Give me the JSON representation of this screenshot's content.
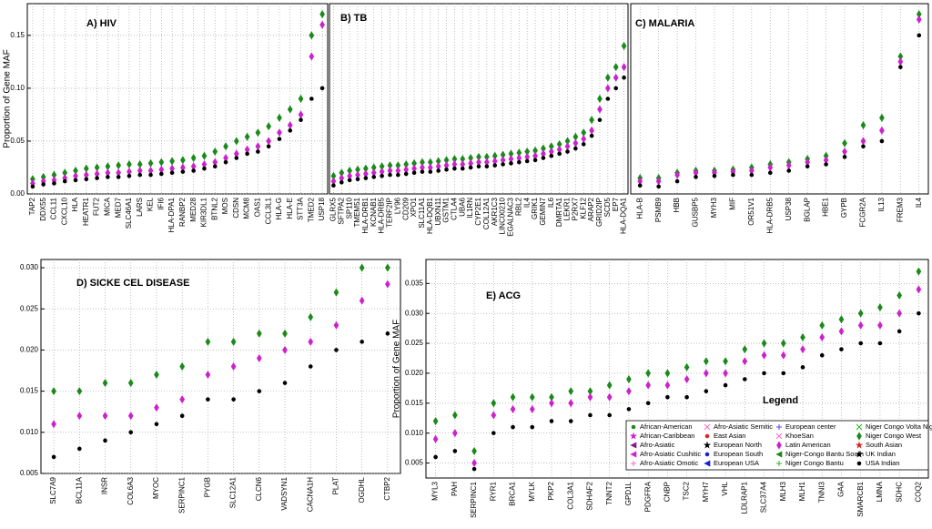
{
  "chart_data": [
    {
      "type": "scatter",
      "title": "A)  HIV",
      "ylabel": "Proportion of Gene MAF",
      "categories": [
        "TAP2",
        "DDX55",
        "CCL11",
        "CXCL10",
        "HLA",
        "HEATR1",
        "FUT2",
        "MICA",
        "MED7",
        "SLC46A1",
        "LARS",
        "KEL",
        "IFI6",
        "HLA-DPA1",
        "RANBP2",
        "MED28",
        "KIR3DL1",
        "BTNL2",
        "MOS",
        "CDSN",
        "MCM8",
        "OAS1",
        "CCL3L1",
        "HLA-G",
        "HLA-E",
        "STT3A",
        "TMED2",
        "USP18"
      ],
      "ylim": [
        0,
        0.18
      ],
      "yticks": [
        {
          "value": 0,
          "label": "0.00"
        },
        {
          "value": 0.05,
          "label": "0.05"
        },
        {
          "value": 0.1,
          "label": "0.10"
        },
        {
          "value": 0.15,
          "label": "0.15"
        }
      ],
      "grid": true,
      "series": [
        {
          "name": "Niger Congo West",
          "color": "#1a8a1a",
          "marker": "diamond",
          "values": [
            0.014,
            0.016,
            0.018,
            0.02,
            0.022,
            0.024,
            0.025,
            0.026,
            0.027,
            0.028,
            0.028,
            0.029,
            0.03,
            0.031,
            0.032,
            0.034,
            0.036,
            0.04,
            0.045,
            0.05,
            0.054,
            0.058,
            0.064,
            0.072,
            0.08,
            0.09,
            0.15,
            0.17
          ]
        },
        {
          "name": "Latin American",
          "color": "#cc22cc",
          "marker": "diamond",
          "values": [
            0.01,
            0.012,
            0.013,
            0.015,
            0.017,
            0.018,
            0.019,
            0.02,
            0.02,
            0.021,
            0.022,
            0.022,
            0.023,
            0.024,
            0.025,
            0.026,
            0.028,
            0.03,
            0.034,
            0.038,
            0.042,
            0.045,
            0.05,
            0.058,
            0.065,
            0.075,
            0.13,
            0.16
          ]
        },
        {
          "name": "USA Indian",
          "color": "#000000",
          "marker": "dot",
          "values": [
            0.007,
            0.009,
            0.01,
            0.012,
            0.013,
            0.014,
            0.015,
            0.016,
            0.016,
            0.017,
            0.018,
            0.018,
            0.019,
            0.02,
            0.021,
            0.022,
            0.024,
            0.026,
            0.03,
            0.034,
            0.038,
            0.04,
            0.045,
            0.052,
            0.06,
            0.07,
            0.09,
            0.1
          ]
        }
      ]
    },
    {
      "type": "scatter",
      "title": "B)  TB",
      "categories": [
        "GLRX5",
        "SFTPA2",
        "SP110",
        "TMEM51",
        "HLA-DRB1",
        "KCNAB1",
        "HLA-DRB5",
        "TERF2IP",
        "LY96",
        "CD209",
        "XPO1",
        "SLC11A1",
        "HLA-DQB1",
        "UBXN11",
        "GSTM1",
        "CTLA4",
        "UBA6",
        "IL1RN",
        "CYP2E1",
        "COL12A1",
        "AKR1C3",
        "LINC00210",
        "EGALNAC3",
        "RBL2",
        "IL4",
        "GRIK1",
        "GEMIN7",
        "IL6",
        "DMRTA1",
        "LEKR1",
        "P2RX7",
        "KLF12",
        "ARAP2",
        "GRID2IP",
        "SCD5",
        "EP7",
        "HLA-DQA1"
      ],
      "ylim": [
        0,
        0.18
      ],
      "grid": true,
      "series": [
        {
          "name": "Niger Congo West",
          "color": "#1a8a1a",
          "marker": "diamond",
          "values": [
            0.017,
            0.02,
            0.022,
            0.023,
            0.024,
            0.025,
            0.026,
            0.027,
            0.027,
            0.028,
            0.029,
            0.03,
            0.03,
            0.031,
            0.032,
            0.033,
            0.033,
            0.034,
            0.035,
            0.035,
            0.036,
            0.037,
            0.038,
            0.039,
            0.04,
            0.041,
            0.043,
            0.045,
            0.047,
            0.05,
            0.054,
            0.058,
            0.07,
            0.09,
            0.11,
            0.12,
            0.14
          ]
        },
        {
          "name": "Latin American",
          "color": "#cc22cc",
          "marker": "diamond",
          "values": [
            0.012,
            0.015,
            0.017,
            0.018,
            0.019,
            0.02,
            0.021,
            0.022,
            0.022,
            0.023,
            0.024,
            0.025,
            0.025,
            0.026,
            0.027,
            0.028,
            0.028,
            0.029,
            0.03,
            0.03,
            0.031,
            0.032,
            0.033,
            0.034,
            0.035,
            0.036,
            0.038,
            0.04,
            0.042,
            0.045,
            0.048,
            0.052,
            0.06,
            0.08,
            0.1,
            0.11,
            0.12
          ]
        },
        {
          "name": "USA Indian",
          "color": "#000000",
          "marker": "dot",
          "values": [
            0.008,
            0.011,
            0.013,
            0.014,
            0.015,
            0.016,
            0.017,
            0.018,
            0.018,
            0.019,
            0.02,
            0.021,
            0.021,
            0.022,
            0.023,
            0.024,
            0.024,
            0.025,
            0.026,
            0.026,
            0.027,
            0.028,
            0.029,
            0.03,
            0.031,
            0.032,
            0.034,
            0.036,
            0.038,
            0.04,
            0.043,
            0.047,
            0.055,
            0.07,
            0.09,
            0.1,
            0.11
          ]
        }
      ]
    },
    {
      "type": "scatter",
      "title": "C) MALARIA",
      "categories": [
        "HLA-B",
        "PSMB9",
        "HBB",
        "GUSBP5",
        "MYH3",
        "MIF",
        "OR51V1",
        "HLA-DRB5",
        "USP38",
        "BGLAP",
        "HBE1",
        "GYPB",
        "FCGR2A",
        "IL13",
        "FREM3",
        "IL4"
      ],
      "ylim": [
        0,
        0.18
      ],
      "grid": true,
      "series": [
        {
          "name": "Niger Congo West",
          "color": "#1a8a1a",
          "marker": "diamond",
          "values": [
            0.015,
            0.015,
            0.02,
            0.022,
            0.022,
            0.023,
            0.025,
            0.028,
            0.03,
            0.033,
            0.036,
            0.048,
            0.065,
            0.072,
            0.13,
            0.17
          ]
        },
        {
          "name": "Latin American",
          "color": "#cc22cc",
          "marker": "diamond",
          "values": [
            0.012,
            0.012,
            0.018,
            0.02,
            0.02,
            0.021,
            0.022,
            0.025,
            0.027,
            0.03,
            0.032,
            0.04,
            0.05,
            0.06,
            0.125,
            0.165
          ]
        },
        {
          "name": "USA Indian",
          "color": "#000000",
          "marker": "dot",
          "values": [
            0.008,
            0.007,
            0.012,
            0.016,
            0.017,
            0.018,
            0.018,
            0.02,
            0.022,
            0.026,
            0.028,
            0.035,
            0.045,
            0.05,
            0.12,
            0.15
          ]
        }
      ]
    },
    {
      "type": "scatter",
      "title": "D) SICKE CEL DISEASE",
      "categories": [
        "SLC7A9",
        "BCL11A",
        "INSR",
        "COL6A3",
        "MYOC",
        "SERPINC1",
        "PYGB",
        "SLC12A1",
        "CLCN6",
        "VADSYN1",
        "CACNA1H",
        "PLAT",
        "OGDHL",
        "CTBP2"
      ],
      "ylim": [
        0.005,
        0.031
      ],
      "yticks": [
        {
          "value": 0.005,
          "label": "0.005"
        },
        {
          "value": 0.01,
          "label": "0.010"
        },
        {
          "value": 0.015,
          "label": "0.015"
        },
        {
          "value": 0.02,
          "label": "0.020"
        },
        {
          "value": 0.025,
          "label": "0.025"
        },
        {
          "value": 0.03,
          "label": "0.030"
        }
      ],
      "grid": true,
      "series": [
        {
          "name": "Niger Congo West",
          "color": "#1a8a1a",
          "marker": "diamond",
          "values": [
            0.015,
            0.015,
            0.016,
            0.016,
            0.017,
            0.018,
            0.021,
            0.021,
            0.022,
            0.022,
            0.024,
            0.027,
            0.03,
            0.03
          ]
        },
        {
          "name": "Latin American",
          "color": "#cc22cc",
          "marker": "diamond",
          "values": [
            0.011,
            0.012,
            0.012,
            0.012,
            0.013,
            0.014,
            0.017,
            0.018,
            0.019,
            0.02,
            0.021,
            0.023,
            0.026,
            0.028
          ]
        },
        {
          "name": "USA Indian",
          "color": "#000000",
          "marker": "dot",
          "values": [
            0.007,
            0.008,
            0.009,
            0.01,
            0.011,
            0.012,
            0.014,
            0.014,
            0.015,
            0.016,
            0.018,
            0.02,
            0.021,
            0.022
          ]
        }
      ]
    },
    {
      "type": "scatter",
      "title": "E) ACG",
      "ylabel": "Proportion of Gene MAF",
      "categories": [
        "MYL3",
        "PAH",
        "SERPINC1",
        "RYR1",
        "BRCA1",
        "MYLK",
        "PKP2",
        "COL3A1",
        "SDHAF2",
        "TNNT2",
        "GPD1L",
        "PDGFRA",
        "CNBP",
        "TSC2",
        "MYH7",
        "VHL",
        "LDLRAP1",
        "SLC37A4",
        "MLH3",
        "MLH1",
        "TNNI3",
        "GAA",
        "SMARCB1",
        "LMNA",
        "SDHC",
        "COQ2"
      ],
      "ylim": [
        0.0025,
        0.039
      ],
      "yticks": [
        {
          "value": 0.005,
          "label": "0.005"
        },
        {
          "value": 0.01,
          "label": "0.010"
        },
        {
          "value": 0.015,
          "label": "0.015"
        },
        {
          "value": 0.02,
          "label": "0.020"
        },
        {
          "value": 0.025,
          "label": "0.025"
        },
        {
          "value": 0.03,
          "label": "0.030"
        },
        {
          "value": 0.035,
          "label": "0.035"
        }
      ],
      "grid": true,
      "series": [
        {
          "name": "Niger Congo West",
          "color": "#1a8a1a",
          "marker": "diamond",
          "values": [
            0.012,
            0.013,
            0.007,
            0.015,
            0.016,
            0.016,
            0.016,
            0.017,
            0.017,
            0.018,
            0.019,
            0.02,
            0.02,
            0.021,
            0.022,
            0.022,
            0.024,
            0.025,
            0.025,
            0.026,
            0.028,
            0.029,
            0.03,
            0.031,
            0.033,
            0.037
          ]
        },
        {
          "name": "Latin American",
          "color": "#cc22cc",
          "marker": "diamond",
          "values": [
            0.009,
            0.01,
            0.005,
            0.013,
            0.014,
            0.014,
            0.015,
            0.015,
            0.016,
            0.016,
            0.017,
            0.018,
            0.018,
            0.019,
            0.02,
            0.02,
            0.022,
            0.023,
            0.023,
            0.024,
            0.026,
            0.027,
            0.028,
            0.028,
            0.03,
            0.034
          ]
        },
        {
          "name": "USA Indian",
          "color": "#000000",
          "marker": "dot",
          "values": [
            0.006,
            0.007,
            0.004,
            0.01,
            0.011,
            0.011,
            0.012,
            0.012,
            0.013,
            0.013,
            0.014,
            0.015,
            0.016,
            0.016,
            0.017,
            0.018,
            0.019,
            0.02,
            0.02,
            0.021,
            0.023,
            0.024,
            0.025,
            0.025,
            0.027,
            0.03
          ]
        }
      ]
    }
  ],
  "legend": {
    "title": "Legend",
    "entries": [
      {
        "name": "African-American",
        "color": "#1a8a1a",
        "marker": "dot"
      },
      {
        "name": "African-Caribbean",
        "color": "#cc22cc",
        "marker": "star"
      },
      {
        "name": "Afro-Asiatic",
        "color": "#8a1a8a",
        "marker": "triangle-left"
      },
      {
        "name": "Afro-Asiatic Cushitic",
        "color": "#cc22cc",
        "marker": "triangle-left"
      },
      {
        "name": "Afro-Asiatic Omotic",
        "color": "#ff66cc",
        "marker": "plus"
      },
      {
        "name": "Afro-Asiatic Semitic",
        "color": "#ff66cc",
        "marker": "x"
      },
      {
        "name": "East Asian",
        "color": "#e02020",
        "marker": "dot"
      },
      {
        "name": "European North",
        "color": "#000000",
        "marker": "star"
      },
      {
        "name": "European South",
        "color": "#1a1add",
        "marker": "dot"
      },
      {
        "name": "European USA",
        "color": "#1a1add",
        "marker": "triangle-left"
      },
      {
        "name": "European center",
        "color": "#4444ff",
        "marker": "plus"
      },
      {
        "name": "KhoeSan",
        "color": "#ff66cc",
        "marker": "x"
      },
      {
        "name": "Latin American",
        "color": "#cc22cc",
        "marker": "diamond"
      },
      {
        "name": "Niger-Congo Bantu South",
        "color": "#1a8a1a",
        "marker": "triangle-left"
      },
      {
        "name": "Niger Congo Bantu",
        "color": "#22bb22",
        "marker": "plus"
      },
      {
        "name": "Niger Congo Volta Niger",
        "color": "#22bb22",
        "marker": "x"
      },
      {
        "name": "Niger Congo West",
        "color": "#1a8a1a",
        "marker": "diamond"
      },
      {
        "name": "South Asian",
        "color": "#e02020",
        "marker": "star"
      },
      {
        "name": "UK Indian",
        "color": "#000000",
        "marker": "star"
      },
      {
        "name": "USA Indian",
        "color": "#000000",
        "marker": "dot"
      }
    ]
  }
}
